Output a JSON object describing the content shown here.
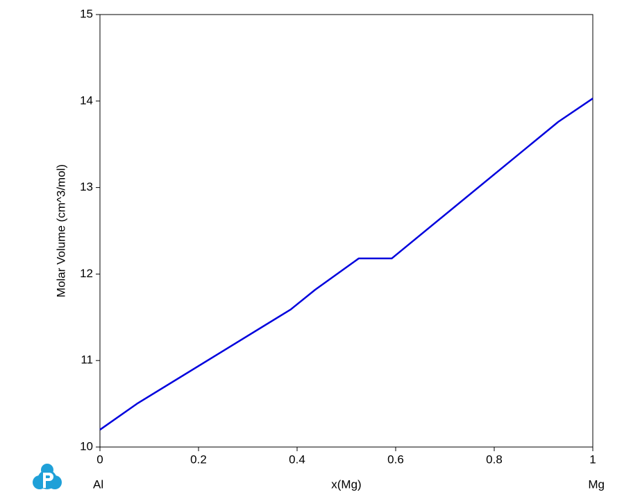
{
  "chart_data": {
    "type": "line",
    "x_label": "x(Mg)",
    "y_label": "Molar Volume (cm^3/mol)",
    "component_labels": [
      "Al",
      "Mg"
    ],
    "series": [
      {
        "name": "Molar Volume",
        "color": "#0000dd",
        "x": [
          0,
          0.075,
          0.387,
          0.437,
          0.525,
          0.592,
          0.93,
          1
        ],
        "values": [
          10.2,
          10.5,
          11.59,
          11.82,
          12.18,
          12.18,
          13.76,
          14.03
        ]
      }
    ],
    "xlim": [
      0,
      1
    ],
    "xticks": [
      0,
      0.2,
      0.4,
      0.6,
      0.8,
      1
    ],
    "ylim": [
      10,
      15
    ],
    "yticks": [
      10,
      11,
      12,
      13,
      14,
      15
    ]
  }
}
